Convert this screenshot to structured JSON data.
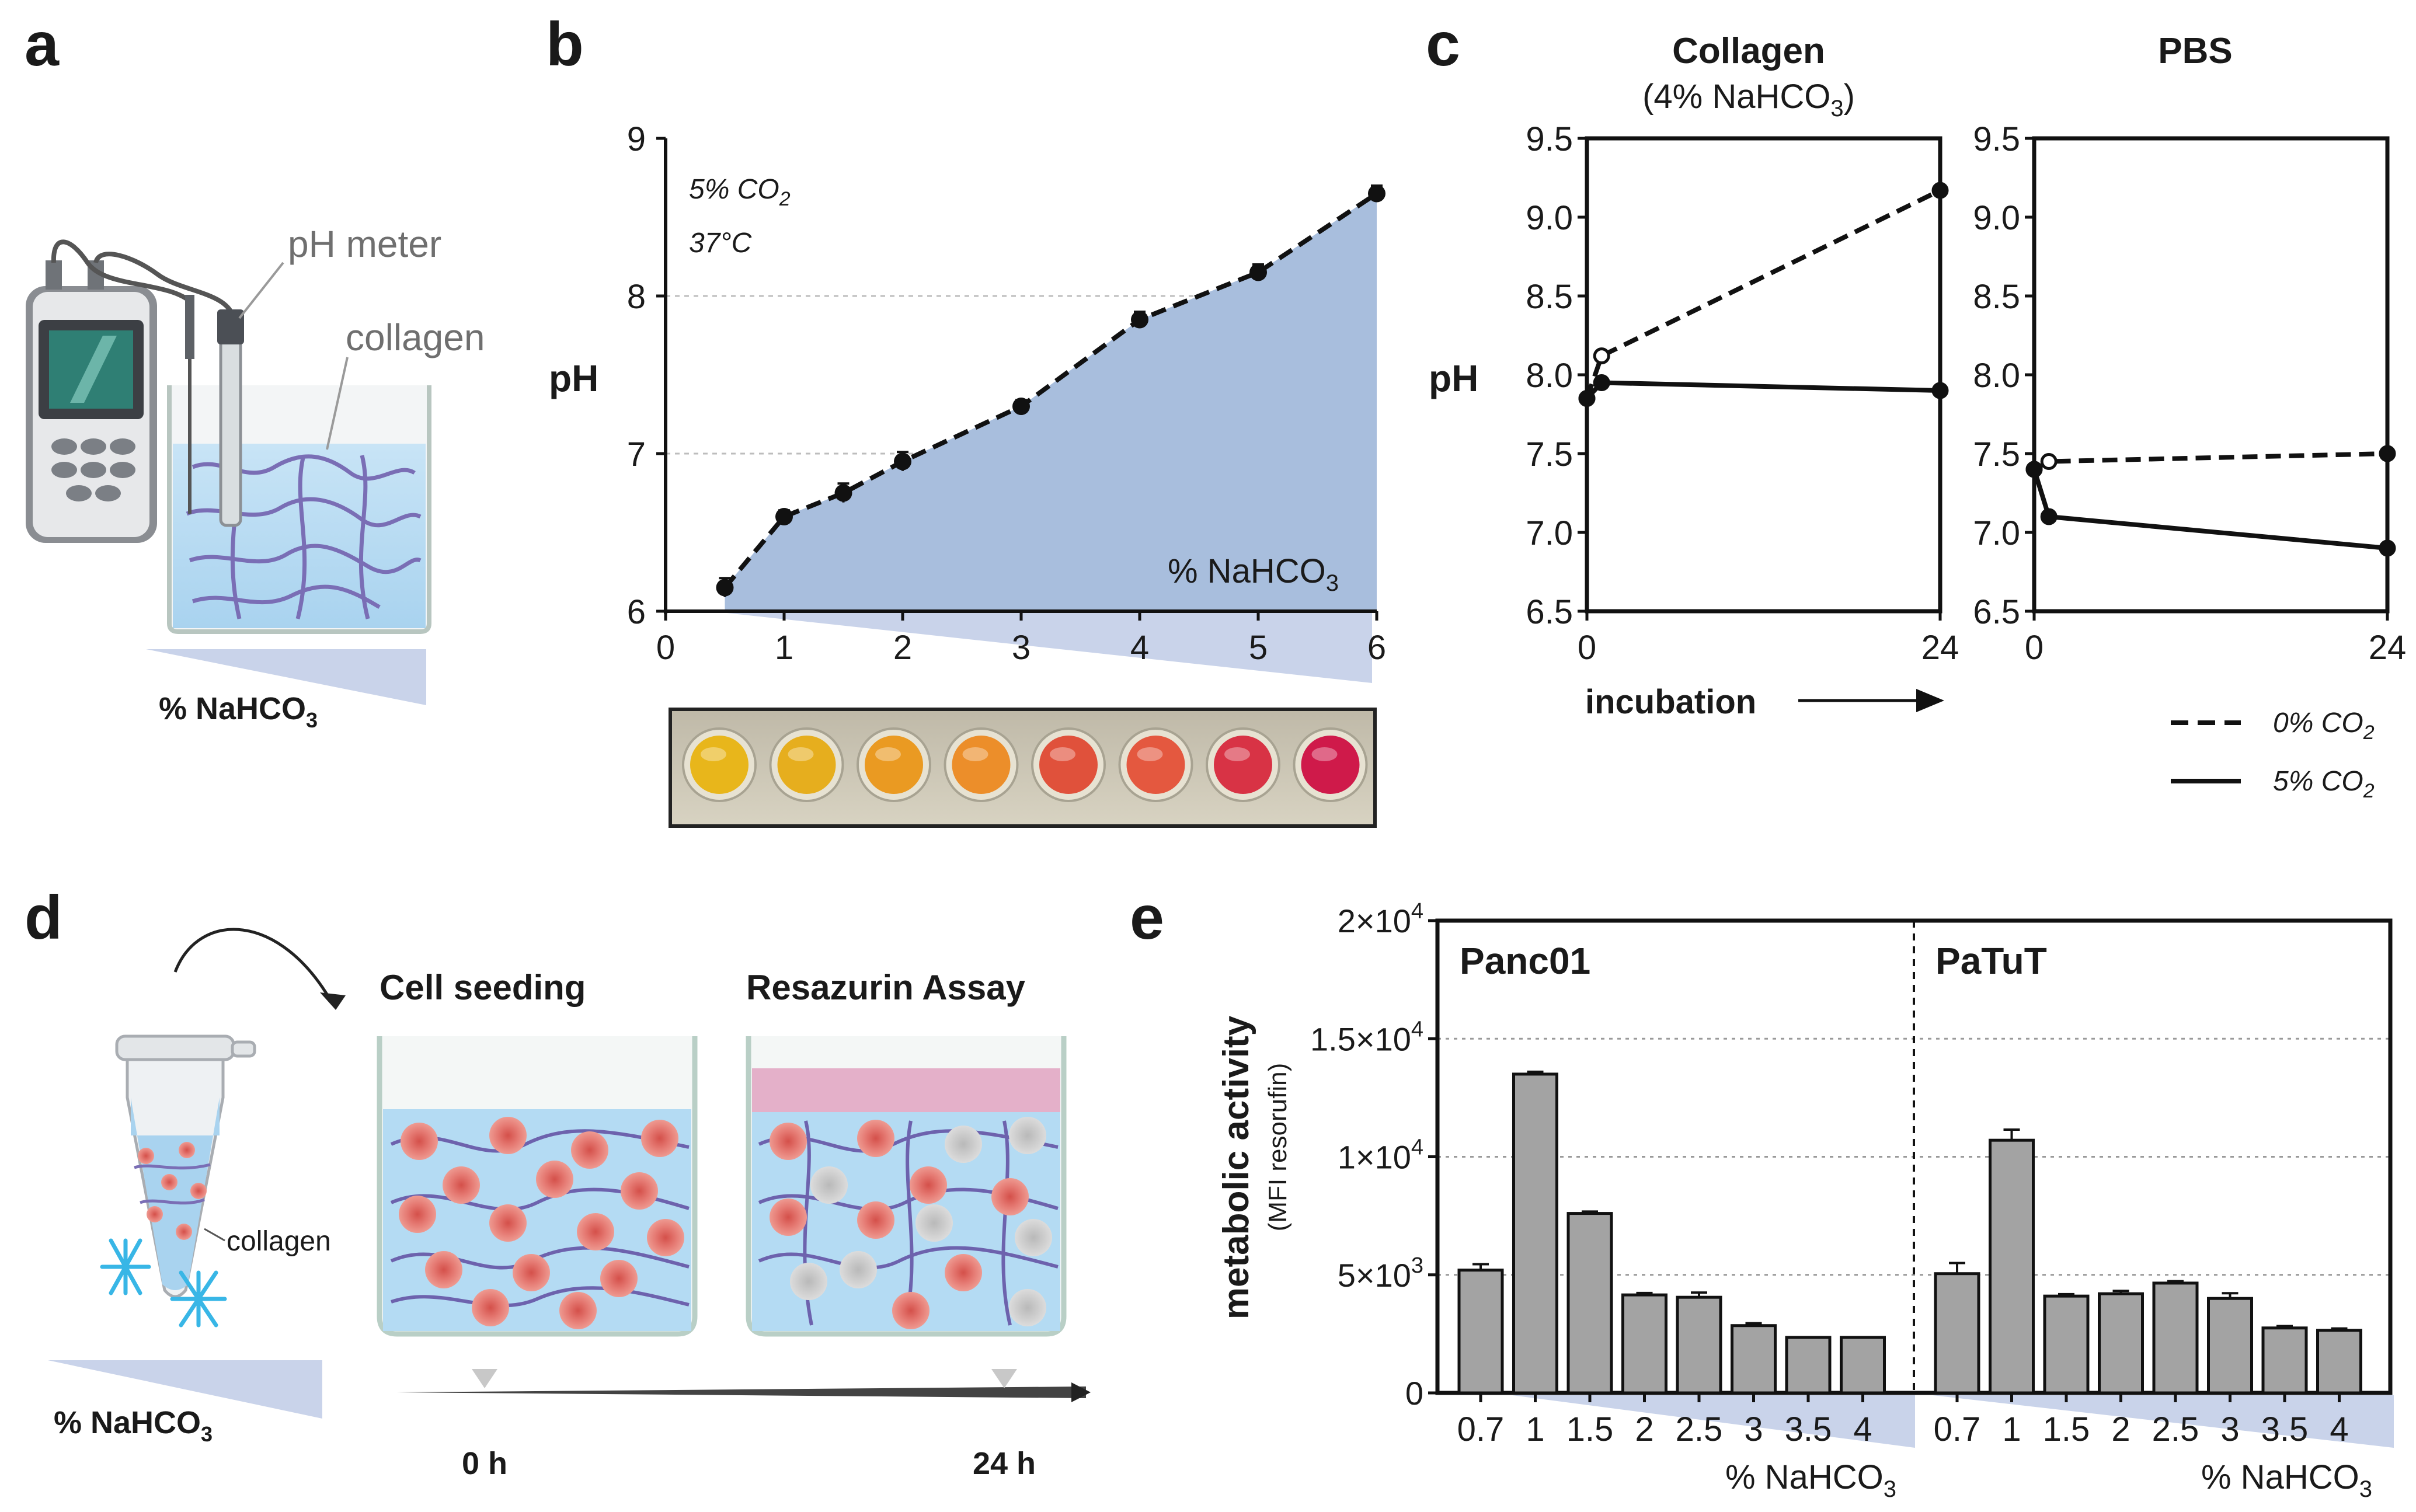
{
  "panels": {
    "a": {
      "letter": "a",
      "meter_label": "pH meter",
      "collagen_label": "collagen",
      "nahco3_label": "% NaHCO",
      "nahco3_sub": "3"
    },
    "b": {
      "letter": "b",
      "cond_co2": "5% CO",
      "cond_co2_sub": "2",
      "cond_temp": "37°C",
      "area_label": "% NaHCO",
      "area_label_sub": "3",
      "well_colors": [
        "#e8b61b",
        "#e6ae1e",
        "#ea9a22",
        "#ec8e2a",
        "#e0513b",
        "#e4583f",
        "#d83345",
        "#cf1a4a"
      ]
    },
    "c": {
      "letter": "c",
      "left_title": "Collagen",
      "left_subtitle_a": "(4% NaHCO",
      "left_subtitle_sub": "3",
      "left_subtitle_b": ")",
      "right_title": "PBS",
      "incubation_label": "incubation",
      "legend": [
        {
          "label": "0% CO",
          "sub": "2",
          "style": "dashed"
        },
        {
          "label": "5% CO",
          "sub": "2",
          "style": "solid"
        }
      ]
    },
    "d": {
      "letter": "d",
      "cell_seeding": "Cell seeding",
      "resazurin": "Resazurin Assay",
      "collagen_label": "collagen",
      "nahco3_label": "% NaHCO",
      "nahco3_sub": "3",
      "time0": "0 h",
      "time24": "24 h"
    },
    "e": {
      "letter": "e",
      "group_left": "Panc01",
      "group_right": "PaTuT",
      "ylabel_main": "metabolic activity",
      "ylabel_sub": "(MFI resorufin)",
      "xlabel": "% NaHCO",
      "xlabel_sub": "3"
    }
  },
  "chart_data": [
    {
      "id": "b",
      "type": "line",
      "title": "",
      "xlabel": "% NaHCO3",
      "ylabel": "pH",
      "xlim": [
        0,
        6
      ],
      "ylim": [
        6,
        9
      ],
      "x_ticks": [
        0,
        1,
        2,
        3,
        4,
        5,
        6
      ],
      "y_ticks": [
        6,
        7,
        8,
        9
      ],
      "series": [
        {
          "name": "pH",
          "style": "dashed",
          "area_fill": "#a8bedd",
          "x": [
            0.5,
            1,
            1.5,
            2,
            3,
            4,
            5,
            6
          ],
          "y": [
            6.15,
            6.6,
            6.75,
            6.95,
            7.3,
            7.85,
            8.15,
            8.65
          ],
          "err": [
            0.06,
            0.04,
            0.06,
            0.06,
            0.04,
            0.05,
            0.05,
            0.05
          ]
        }
      ]
    },
    {
      "id": "c-collagen",
      "type": "line",
      "title": "Collagen (4% NaHCO3)",
      "ylabel": "pH",
      "xlabel": "incubation",
      "xlim": [
        0,
        24
      ],
      "ylim": [
        6.5,
        9.5
      ],
      "x_ticks": [
        0,
        24
      ],
      "y_ticks": [
        "6.5",
        "7.0",
        "7.5",
        "8.0",
        "8.5",
        "9.0",
        "9.5"
      ],
      "series": [
        {
          "name": "0% CO2",
          "style": "dashed",
          "x": [
            0,
            1,
            24
          ],
          "y": [
            7.85,
            8.12,
            9.17
          ]
        },
        {
          "name": "5% CO2",
          "style": "solid",
          "x": [
            0,
            1,
            24
          ],
          "y": [
            7.85,
            7.95,
            7.9
          ]
        }
      ]
    },
    {
      "id": "c-pbs",
      "type": "line",
      "title": "PBS",
      "xlim": [
        0,
        24
      ],
      "ylim": [
        6.5,
        9.5
      ],
      "x_ticks": [
        0,
        24
      ],
      "y_ticks": [
        "6.5",
        "7.0",
        "7.5",
        "8.0",
        "8.5",
        "9.0",
        "9.5"
      ],
      "series": [
        {
          "name": "0% CO2",
          "style": "dashed",
          "x": [
            0,
            1,
            24
          ],
          "y": [
            7.4,
            7.45,
            7.5
          ]
        },
        {
          "name": "5% CO2",
          "style": "solid",
          "x": [
            0,
            1,
            24
          ],
          "y": [
            7.4,
            7.1,
            6.9
          ]
        }
      ]
    },
    {
      "id": "e",
      "type": "bar",
      "ylabel": "metabolic activity (MFI resorufin)",
      "xlabel": "% NaHCO3",
      "ylim": [
        0,
        20000
      ],
      "y_ticks": [
        {
          "value": 0,
          "base": "0",
          "exp": ""
        },
        {
          "value": 5000,
          "base": "5×10",
          "exp": "3"
        },
        {
          "value": 10000,
          "base": "1×10",
          "exp": "4"
        },
        {
          "value": 15000,
          "base": "1.5×10",
          "exp": "4"
        },
        {
          "value": 20000,
          "base": "2×10",
          "exp": "4"
        }
      ],
      "categories": [
        "0.7",
        "1",
        "1.5",
        "2",
        "2.5",
        "3",
        "3.5",
        "4"
      ],
      "series": [
        {
          "name": "Panc01",
          "values": [
            5200,
            13500,
            7600,
            4150,
            4050,
            2850,
            2350,
            2350
          ],
          "err": [
            250,
            100,
            80,
            80,
            200,
            100,
            0,
            0
          ]
        },
        {
          "name": "PaTuT",
          "values": [
            5050,
            10700,
            4100,
            4200,
            4650,
            4000,
            2750,
            2650
          ],
          "err": [
            450,
            450,
            80,
            120,
            80,
            220,
            80,
            80
          ]
        }
      ]
    }
  ]
}
